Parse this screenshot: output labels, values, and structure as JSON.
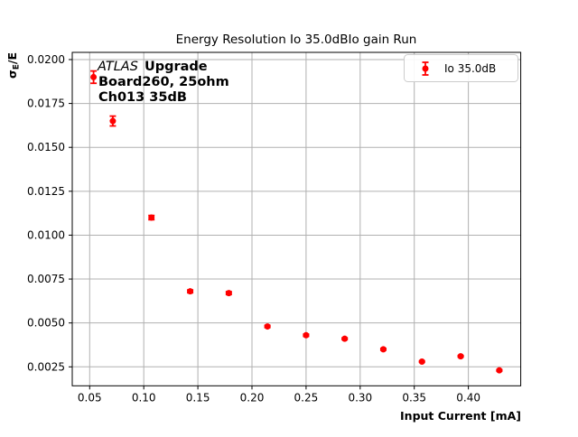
{
  "figure": {
    "background": "#ffffff"
  },
  "chart_data": {
    "type": "scatter",
    "title": "Energy Resolution Io 35.0dBIo gain Run",
    "xlabel": "Input Current [mA]",
    "ylabel": "σE/E",
    "ylabel_parts": {
      "sigma": "σ",
      "subscript": "E",
      "rest": "/E"
    },
    "xlim": [
      0.0339,
      0.4484
    ],
    "ylim": [
      0.00142,
      0.02041
    ],
    "xtick_values": [
      0.05,
      0.1,
      0.15,
      0.2,
      0.25,
      0.3,
      0.35,
      0.4
    ],
    "xtick_labels": [
      "0.05",
      "0.10",
      "0.15",
      "0.20",
      "0.25",
      "0.30",
      "0.35",
      "0.40"
    ],
    "ytick_values": [
      0.0025,
      0.005,
      0.0075,
      0.01,
      0.0125,
      0.015,
      0.0175,
      0.02
    ],
    "ytick_labels": [
      "0.0025",
      "0.0050",
      "0.0075",
      "0.0100",
      "0.0125",
      "0.0150",
      "0.0175",
      "0.0200"
    ],
    "grid": true,
    "grid_color": "#b0b0b0",
    "spine_color": "#000000",
    "legend": {
      "label": "Io 35.0dB",
      "position": "upper right",
      "border_color": "#cccccc",
      "marker": "errorbar-point"
    },
    "annotation": {
      "line1_italic": "ATLAS",
      "line1_bold": "Upgrade",
      "line2": "Board260, 25ohm",
      "line3": "Ch013 35dB"
    },
    "series": [
      {
        "name": "Io 35.0dB",
        "color": "#ff0000",
        "marker": "circle",
        "x": [
          0.0536,
          0.0714,
          0.1071,
          0.1429,
          0.1786,
          0.2143,
          0.25,
          0.2857,
          0.3214,
          0.3571,
          0.3929,
          0.4286
        ],
        "y": [
          0.019,
          0.0165,
          0.011,
          0.0068,
          0.0067,
          0.0048,
          0.0043,
          0.0041,
          0.0035,
          0.0028,
          0.0031,
          0.0023
        ],
        "yerr": [
          0.00035,
          0.00028,
          0.00012,
          8e-05,
          8e-05,
          6e-05,
          6e-05,
          5e-05,
          5e-05,
          4e-05,
          4e-05,
          4e-05
        ]
      }
    ]
  }
}
